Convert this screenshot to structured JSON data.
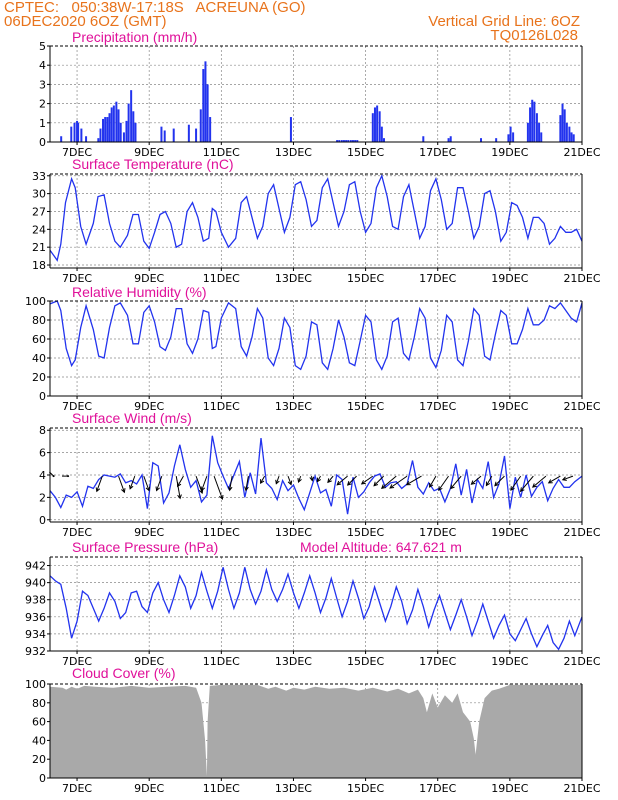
{
  "header": {
    "line1": "CPTEC:   050:38W-17:18S   ACREUNA (GO)",
    "line2": "06DEC2020 6OZ (GMT)",
    "right1": "Vertical Grid Line: 6OZ",
    "right2": "TQ0126L028"
  },
  "colors": {
    "header": "#e8731c",
    "title": "#e0119a",
    "line": "#2233ee",
    "bar": "#2233ee",
    "cloud": "#a9a9a9",
    "grid": "#888888"
  },
  "x_tick_labels": [
    "7DEC",
    "9DEC",
    "11DEC",
    "13DEC",
    "15DEC",
    "17DEC",
    "19DEC",
    "21DEC"
  ],
  "panels": {
    "precip": {
      "title": "Precipitation (mm/h)"
    },
    "temp": {
      "title": "Surface Temperature (nC)"
    },
    "rh": {
      "title": "Relative Humidity (%)"
    },
    "wind": {
      "title": "Surface Wind (m/s)"
    },
    "pres": {
      "title": "Surface Pressure (hPa)",
      "extra": "Model Altitude: 647.621 m"
    },
    "cloud": {
      "title": "Cloud Cover (%)"
    }
  },
  "chart_data": [
    {
      "id": "precip",
      "type": "bar",
      "title": "Precipitation (mm/h)",
      "xlim": [
        6.25,
        21.0
      ],
      "ylim": [
        0,
        5
      ],
      "yticks": [
        0,
        1,
        2,
        3,
        4,
        5
      ],
      "x": [
        6.56,
        6.84,
        6.93,
        7.0,
        7.03,
        7.12,
        7.25,
        7.59,
        7.65,
        7.72,
        7.78,
        7.84,
        7.9,
        7.96,
        8.02,
        8.09,
        8.15,
        8.21,
        8.3,
        8.37,
        8.43,
        8.5,
        8.56,
        8.62,
        9.34,
        9.43,
        9.68,
        10.1,
        10.3,
        10.43,
        10.5,
        10.56,
        10.62,
        10.69,
        12.93,
        14.21,
        14.27,
        14.34,
        14.4,
        14.46,
        14.52,
        14.59,
        14.65,
        14.71,
        14.77,
        15.2,
        15.26,
        15.32,
        15.39,
        15.45,
        15.51,
        16.6,
        17.3,
        17.36,
        18.2,
        18.62,
        18.96,
        19.02,
        19.09,
        19.5,
        19.56,
        19.62,
        19.68,
        19.75,
        19.81,
        19.87,
        20.4,
        20.46,
        20.52,
        20.58,
        20.65,
        20.71,
        20.77
      ],
      "values": [
        0.3,
        0.8,
        1.0,
        1.1,
        1.0,
        0.7,
        0.3,
        0.2,
        0.7,
        1.2,
        1.3,
        1.3,
        1.5,
        1.8,
        1.9,
        2.1,
        1.7,
        1.0,
        0.5,
        1.1,
        2.0,
        2.7,
        1.6,
        1.0,
        0.8,
        0.6,
        0.7,
        0.9,
        0.7,
        1.7,
        3.8,
        4.2,
        3.0,
        1.3,
        1.3,
        0.1,
        0.1,
        0.1,
        0.1,
        0.1,
        0.1,
        0.1,
        0.1,
        0.1,
        0.1,
        1.5,
        1.8,
        1.9,
        1.6,
        0.8,
        0.2,
        0.3,
        0.2,
        0.3,
        0.2,
        0.2,
        0.4,
        0.8,
        0.5,
        1.0,
        1.8,
        2.2,
        2.1,
        1.5,
        1.0,
        0.5,
        1.4,
        2.0,
        1.7,
        1.0,
        0.8,
        0.5,
        0.4
      ]
    },
    {
      "id": "temp",
      "type": "line",
      "title": "Surface Temperature (nC)",
      "xlim": [
        6.25,
        21.0
      ],
      "ylim": [
        17.5,
        33.3
      ],
      "yticks": [
        18,
        21,
        24,
        27,
        30,
        33
      ],
      "x": [
        6.25,
        6.45,
        6.55,
        6.68,
        6.85,
        6.95,
        7.1,
        7.25,
        7.45,
        7.58,
        7.75,
        7.9,
        8.05,
        8.2,
        8.4,
        8.55,
        8.7,
        8.85,
        9.0,
        9.15,
        9.3,
        9.45,
        9.6,
        9.75,
        9.9,
        10.05,
        10.2,
        10.35,
        10.5,
        10.65,
        10.75,
        10.85,
        11.0,
        11.2,
        11.4,
        11.55,
        11.7,
        11.85,
        12.0,
        12.15,
        12.3,
        12.45,
        12.6,
        12.75,
        12.9,
        13.05,
        13.2,
        13.35,
        13.5,
        13.65,
        13.8,
        13.95,
        14.1,
        14.25,
        14.4,
        14.55,
        14.7,
        14.85,
        15.0,
        15.15,
        15.3,
        15.45,
        15.6,
        15.75,
        15.9,
        16.05,
        16.2,
        16.35,
        16.5,
        16.65,
        16.8,
        16.95,
        17.1,
        17.25,
        17.4,
        17.55,
        17.7,
        17.85,
        18.0,
        18.15,
        18.3,
        18.45,
        18.6,
        18.75,
        18.9,
        19.05,
        19.2,
        19.35,
        19.5,
        19.65,
        19.8,
        19.95,
        20.1,
        20.25,
        20.4,
        20.55,
        20.7,
        20.85,
        21.0
      ],
      "values": [
        20.5,
        18.8,
        21.5,
        28.5,
        32.5,
        31.0,
        24.5,
        21.5,
        25.0,
        29.5,
        29.8,
        25.0,
        22.0,
        21.0,
        23.0,
        26.5,
        26.5,
        22.0,
        20.8,
        23.5,
        26.5,
        27.0,
        25.0,
        21.0,
        21.5,
        27.0,
        28.5,
        26.0,
        22.0,
        22.5,
        27.5,
        27.0,
        23.5,
        21.0,
        22.5,
        28.5,
        29.5,
        26.0,
        22.5,
        24.5,
        30.0,
        31.5,
        27.5,
        23.5,
        26.0,
        31.5,
        32.0,
        29.0,
        24.5,
        25.5,
        31.0,
        32.5,
        28.5,
        24.5,
        27.0,
        31.5,
        32.0,
        27.0,
        23.5,
        25.0,
        31.0,
        33.0,
        29.5,
        24.5,
        24.0,
        29.5,
        31.5,
        27.0,
        22.5,
        24.5,
        30.5,
        32.5,
        29.0,
        24.0,
        25.0,
        31.0,
        31.0,
        27.0,
        22.5,
        24.5,
        30.0,
        30.5,
        27.0,
        22.0,
        23.5,
        28.5,
        28.0,
        26.0,
        22.5,
        26.0,
        26.0,
        25.0,
        21.5,
        22.5,
        24.5,
        23.5,
        23.5,
        24.0,
        22.0
      ]
    },
    {
      "id": "rh",
      "type": "line",
      "title": "Relative Humidity (%)",
      "xlim": [
        6.25,
        21.0
      ],
      "ylim": [
        0,
        100
      ],
      "yticks": [
        0,
        20,
        40,
        60,
        80,
        100
      ],
      "x": [
        6.25,
        6.45,
        6.55,
        6.7,
        6.85,
        6.95,
        7.1,
        7.25,
        7.45,
        7.6,
        7.75,
        7.9,
        8.05,
        8.2,
        8.4,
        8.55,
        8.7,
        8.85,
        9.0,
        9.15,
        9.3,
        9.45,
        9.6,
        9.75,
        9.9,
        10.05,
        10.2,
        10.35,
        10.5,
        10.65,
        10.75,
        10.85,
        11.0,
        11.2,
        11.4,
        11.55,
        11.7,
        11.85,
        12.0,
        12.15,
        12.3,
        12.45,
        12.6,
        12.75,
        12.9,
        13.05,
        13.2,
        13.35,
        13.5,
        13.65,
        13.8,
        13.95,
        14.1,
        14.25,
        14.4,
        14.55,
        14.7,
        14.85,
        15.0,
        15.15,
        15.3,
        15.45,
        15.6,
        15.75,
        15.9,
        16.05,
        16.2,
        16.35,
        16.5,
        16.65,
        16.8,
        16.95,
        17.1,
        17.25,
        17.4,
        17.55,
        17.7,
        17.85,
        18.0,
        18.15,
        18.3,
        18.45,
        18.6,
        18.75,
        18.9,
        19.05,
        19.2,
        19.35,
        19.5,
        19.65,
        19.8,
        19.95,
        20.1,
        20.25,
        20.4,
        20.55,
        20.7,
        20.85,
        21.0
      ],
      "values": [
        97,
        100,
        90,
        50,
        32,
        38,
        72,
        95,
        70,
        42,
        40,
        72,
        95,
        98,
        85,
        55,
        55,
        88,
        95,
        78,
        52,
        48,
        62,
        92,
        92,
        55,
        45,
        60,
        90,
        88,
        50,
        52,
        82,
        98,
        92,
        52,
        42,
        62,
        92,
        82,
        40,
        32,
        50,
        82,
        72,
        32,
        28,
        42,
        78,
        75,
        35,
        28,
        50,
        80,
        62,
        35,
        32,
        58,
        85,
        78,
        38,
        28,
        42,
        78,
        82,
        45,
        38,
        62,
        92,
        82,
        40,
        30,
        48,
        85,
        78,
        38,
        32,
        58,
        92,
        85,
        42,
        38,
        65,
        90,
        85,
        55,
        55,
        70,
        92,
        75,
        75,
        80,
        95,
        92,
        98,
        90,
        82,
        78,
        98
      ]
    },
    {
      "id": "wind",
      "type": "line",
      "title": "Surface Wind (m/s)",
      "xlim": [
        6.25,
        21.0
      ],
      "ylim": [
        -0.2,
        8.2
      ],
      "yticks": [
        0,
        2,
        4,
        6,
        8
      ],
      "x": [
        6.25,
        6.4,
        6.55,
        6.7,
        6.85,
        7.0,
        7.15,
        7.3,
        7.45,
        7.6,
        7.75,
        7.9,
        8.05,
        8.2,
        8.35,
        8.5,
        8.65,
        8.8,
        8.95,
        9.1,
        9.25,
        9.4,
        9.55,
        9.7,
        9.85,
        10.0,
        10.15,
        10.3,
        10.45,
        10.6,
        10.75,
        10.9,
        11.05,
        11.2,
        11.35,
        11.5,
        11.65,
        11.8,
        11.95,
        12.1,
        12.25,
        12.4,
        12.55,
        12.7,
        12.85,
        13.0,
        13.15,
        13.3,
        13.45,
        13.6,
        13.75,
        13.9,
        14.05,
        14.2,
        14.35,
        14.5,
        14.65,
        14.8,
        14.95,
        15.1,
        15.25,
        15.4,
        15.55,
        15.7,
        15.85,
        16.0,
        16.15,
        16.3,
        16.45,
        16.6,
        16.75,
        16.9,
        17.05,
        17.2,
        17.35,
        17.5,
        17.65,
        17.8,
        17.95,
        18.1,
        18.25,
        18.4,
        18.55,
        18.7,
        18.85,
        19.0,
        19.15,
        19.3,
        19.45,
        19.6,
        19.75,
        19.9,
        20.05,
        20.2,
        20.35,
        20.5,
        20.65,
        20.8,
        21.0
      ],
      "values": [
        2.6,
        2.0,
        1.1,
        2.2,
        2.0,
        2.5,
        1.2,
        3.0,
        2.8,
        3.6,
        4.0,
        3.9,
        3.8,
        4.1,
        3.3,
        3.5,
        3.2,
        4.0,
        1.0,
        5.1,
        4.8,
        1.5,
        2.4,
        4.8,
        6.7,
        4.5,
        2.9,
        3.5,
        1.6,
        2.2,
        7.5,
        5.1,
        3.9,
        2.8,
        4.0,
        5.2,
        2.0,
        4.2,
        2.3,
        7.3,
        3.3,
        2.8,
        1.8,
        3.5,
        2.6,
        3.1,
        1.9,
        0.9,
        2.4,
        3.9,
        2.4,
        2.7,
        1.2,
        4.0,
        3.6,
        0.5,
        3.8,
        2.0,
        2.5,
        3.3,
        3.9,
        4.1,
        2.9,
        3.3,
        3.4,
        2.8,
        3.2,
        5.3,
        2.9,
        2.3,
        3.3,
        2.6,
        2.8,
        1.6,
        2.8,
        5.0,
        2.2,
        4.5,
        1.5,
        3.6,
        2.8,
        5.2,
        2.0,
        3.2,
        5.7,
        1.0,
        3.8,
        2.0,
        4.0,
        2.1,
        2.9,
        3.4,
        1.7,
        2.8,
        3.6,
        2.9,
        2.9,
        3.4,
        3.9
      ]
    },
    {
      "id": "pres",
      "type": "line",
      "title": "Surface Pressure (hPa)",
      "xlim": [
        6.25,
        21.0
      ],
      "ylim": [
        932,
        943
      ],
      "yticks": [
        932,
        934,
        936,
        938,
        940,
        942
      ],
      "x": [
        6.25,
        6.4,
        6.55,
        6.7,
        6.85,
        7.0,
        7.15,
        7.3,
        7.45,
        7.6,
        7.75,
        7.9,
        8.05,
        8.2,
        8.35,
        8.5,
        8.65,
        8.8,
        8.95,
        9.1,
        9.25,
        9.4,
        9.55,
        9.7,
        9.85,
        10.0,
        10.15,
        10.3,
        10.45,
        10.6,
        10.75,
        10.9,
        11.05,
        11.2,
        11.35,
        11.5,
        11.65,
        11.8,
        11.95,
        12.1,
        12.25,
        12.4,
        12.55,
        12.7,
        12.85,
        13.0,
        13.15,
        13.3,
        13.45,
        13.6,
        13.75,
        13.9,
        14.05,
        14.2,
        14.35,
        14.5,
        14.65,
        14.8,
        14.95,
        15.1,
        15.25,
        15.4,
        15.55,
        15.7,
        15.85,
        16.0,
        16.15,
        16.3,
        16.45,
        16.6,
        16.75,
        16.9,
        17.05,
        17.2,
        17.35,
        17.5,
        17.65,
        17.8,
        17.95,
        18.1,
        18.25,
        18.4,
        18.55,
        18.7,
        18.85,
        19.0,
        19.15,
        19.3,
        19.45,
        19.6,
        19.75,
        19.9,
        20.05,
        20.2,
        20.35,
        20.5,
        20.65,
        20.8,
        21.0
      ],
      "values": [
        940.8,
        940.2,
        939.8,
        937.0,
        933.5,
        935.5,
        939.0,
        938.5,
        937.0,
        935.5,
        937.0,
        938.8,
        937.8,
        935.8,
        936.5,
        938.8,
        939.0,
        937.2,
        936.5,
        938.8,
        940.0,
        938.0,
        936.5,
        938.5,
        940.8,
        939.5,
        937.0,
        938.5,
        941.2,
        939.0,
        937.0,
        939.0,
        941.8,
        939.2,
        937.0,
        938.8,
        941.8,
        939.2,
        937.5,
        939.0,
        941.5,
        939.2,
        937.8,
        939.2,
        941.0,
        938.8,
        937.0,
        938.8,
        940.8,
        938.8,
        936.5,
        938.2,
        940.5,
        938.2,
        936.0,
        937.8,
        940.2,
        938.2,
        935.8,
        937.2,
        939.5,
        937.5,
        935.5,
        937.2,
        939.5,
        937.8,
        935.2,
        936.8,
        939.2,
        937.2,
        934.8,
        936.8,
        938.5,
        936.5,
        934.5,
        936.2,
        938.0,
        936.0,
        933.8,
        935.5,
        937.5,
        935.5,
        933.5,
        935.0,
        936.2,
        934.0,
        933.2,
        934.5,
        935.8,
        934.0,
        932.5,
        933.8,
        935.0,
        933.0,
        932.2,
        933.5,
        935.5,
        933.8,
        936.0
      ]
    },
    {
      "id": "cloud",
      "type": "area",
      "title": "Cloud Cover (%)",
      "xlim": [
        6.25,
        21.0
      ],
      "ylim": [
        0,
        100
      ],
      "yticks": [
        0,
        20,
        40,
        60,
        80,
        100
      ],
      "x": [
        6.25,
        6.6,
        6.7,
        6.85,
        7.0,
        7.2,
        7.5,
        8.0,
        8.5,
        9.0,
        9.5,
        10.0,
        10.3,
        10.45,
        10.55,
        10.6,
        10.62,
        10.68,
        11.0,
        11.5,
        12.0,
        12.3,
        12.5,
        12.8,
        13.0,
        13.3,
        13.6,
        14.0,
        14.4,
        14.8,
        15.2,
        15.6,
        15.9,
        16.2,
        16.45,
        16.6,
        16.7,
        16.85,
        17.0,
        17.2,
        17.4,
        17.55,
        17.7,
        17.8,
        17.9,
        18.0,
        18.05,
        18.15,
        18.3,
        18.5,
        18.7,
        19.0,
        19.5,
        20.0,
        20.5,
        21.0
      ],
      "values": [
        97,
        96,
        94,
        97,
        95,
        98,
        97,
        96,
        98,
        96,
        97,
        98,
        96,
        80,
        40,
        2,
        60,
        98,
        99,
        99,
        99,
        95,
        97,
        93,
        96,
        94,
        97,
        95,
        96,
        93,
        96,
        92,
        95,
        90,
        94,
        85,
        70,
        90,
        75,
        88,
        80,
        90,
        70,
        65,
        60,
        42,
        25,
        60,
        85,
        93,
        95,
        99,
        99,
        99,
        99,
        99
      ]
    },
    {
      "id": "wind_vectors",
      "type": "scatter",
      "title": "",
      "x": [
        6.35,
        6.75,
        7.7,
        8.15,
        8.6,
        8.85,
        9.35,
        9.75,
        9.95,
        10.3,
        10.6,
        10.8,
        11.3,
        11.75,
        12.2,
        12.6,
        12.85,
        13.2,
        13.5,
        13.75,
        14.1,
        14.5,
        14.75,
        15.2,
        15.5,
        15.85,
        16.15,
        16.55,
        16.95,
        17.3,
        17.65,
        18.2,
        18.5,
        18.85,
        19.3,
        19.65,
        20.0,
        20.4,
        20.75
      ],
      "values": [
        0,
        0,
        1.8,
        1.9,
        1.5,
        1.7,
        1.7,
        2.5,
        1.3,
        2.0,
        1.7,
        2.7,
        1.6,
        1.6,
        0.9,
        0.9,
        1.0,
        0.7,
        0.5,
        0.7,
        0.9,
        1.5,
        1.4,
        1.5,
        1.5,
        2.1,
        2.3,
        1.9,
        1.4,
        1.9,
        1.8,
        1.4,
        1.2,
        1.5,
        1.9,
        2.2,
        1.9,
        1.5,
        1.2
      ],
      "direction_deg": [
        315,
        270,
        200,
        160,
        200,
        160,
        200,
        170,
        210,
        160,
        200,
        160,
        190,
        190,
        210,
        200,
        160,
        200,
        170,
        210,
        220,
        230,
        225,
        235,
        225,
        230,
        235,
        240,
        210,
        215,
        220,
        230,
        210,
        225,
        215,
        220,
        230,
        240,
        250
      ]
    }
  ]
}
